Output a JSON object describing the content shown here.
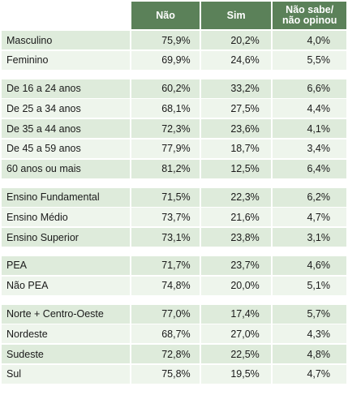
{
  "chart_data": {
    "type": "table",
    "columns": [
      "",
      "Não",
      "Sim",
      "Não sabe/\nnão opinou"
    ],
    "groups": [
      {
        "rows": [
          {
            "label": "Masculino",
            "values": [
              "75,9%",
              "20,2%",
              "4,0%"
            ]
          },
          {
            "label": "Feminino",
            "values": [
              "69,9%",
              "24,6%",
              "5,5%"
            ]
          }
        ]
      },
      {
        "rows": [
          {
            "label": "De 16 a 24 anos",
            "values": [
              "60,2%",
              "33,2%",
              "6,6%"
            ]
          },
          {
            "label": "De 25 a 34 anos",
            "values": [
              "68,1%",
              "27,5%",
              "4,4%"
            ]
          },
          {
            "label": "De 35 a 44 anos",
            "values": [
              "72,3%",
              "23,6%",
              "4,1%"
            ]
          },
          {
            "label": "De 45 a 59 anos",
            "values": [
              "77,9%",
              "18,7%",
              "3,4%"
            ]
          },
          {
            "label": "60 anos ou mais",
            "values": [
              "81,2%",
              "12,5%",
              "6,4%"
            ]
          }
        ]
      },
      {
        "rows": [
          {
            "label": "Ensino Fundamental",
            "values": [
              "71,5%",
              "22,3%",
              "6,2%"
            ]
          },
          {
            "label": "Ensino Médio",
            "values": [
              "73,7%",
              "21,6%",
              "4,7%"
            ]
          },
          {
            "label": "Ensino Superior",
            "values": [
              "73,1%",
              "23,8%",
              "3,1%"
            ]
          }
        ]
      },
      {
        "rows": [
          {
            "label": "PEA",
            "values": [
              "71,7%",
              "23,7%",
              "4,6%"
            ]
          },
          {
            "label": "Não PEA",
            "values": [
              "74,8%",
              "20,0%",
              "5,1%"
            ]
          }
        ]
      },
      {
        "rows": [
          {
            "label": "Norte + Centro-Oeste",
            "values": [
              "77,0%",
              "17,4%",
              "5,7%"
            ]
          },
          {
            "label": "Nordeste",
            "values": [
              "68,7%",
              "27,0%",
              "4,3%"
            ]
          },
          {
            "label": "Sudeste",
            "values": [
              "72,8%",
              "22,5%",
              "4,8%"
            ]
          },
          {
            "label": "Sul",
            "values": [
              "75,8%",
              "19,5%",
              "4,7%"
            ]
          }
        ]
      }
    ],
    "colors": {
      "header": "#5b8159",
      "row_dark": "#deebdb",
      "row_light": "#eef5ec"
    }
  }
}
